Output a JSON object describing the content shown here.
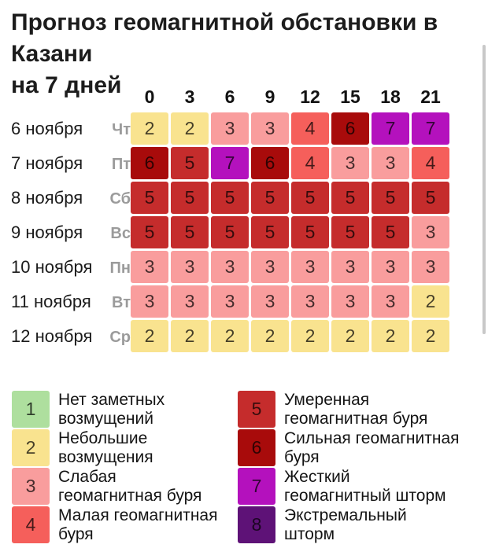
{
  "title": {
    "full": "Прогноз геомагнитной обстановки в Казани на 7 дней",
    "lines": [
      "Прогноз геомагнитной обстановки в Казани",
      "на 7 дней"
    ]
  },
  "chart_data": {
    "type": "heatmap",
    "title": "Прогноз геомагнитной обстановки в Казани на 7 дней",
    "x": [
      "0",
      "3",
      "6",
      "9",
      "12",
      "15",
      "18",
      "21"
    ],
    "rows": [
      {
        "date": "6 ноября",
        "weekday": "Чт",
        "values": [
          2,
          2,
          3,
          3,
          4,
          6,
          7,
          7
        ]
      },
      {
        "date": "7 ноября",
        "weekday": "Пт",
        "values": [
          6,
          5,
          7,
          6,
          4,
          3,
          3,
          4
        ]
      },
      {
        "date": "8 ноября",
        "weekday": "Сб",
        "values": [
          5,
          5,
          5,
          5,
          5,
          5,
          5,
          5
        ]
      },
      {
        "date": "9 ноября",
        "weekday": "Вс",
        "values": [
          5,
          5,
          5,
          5,
          5,
          5,
          5,
          3
        ]
      },
      {
        "date": "10 ноября",
        "weekday": "Пн",
        "values": [
          3,
          3,
          3,
          3,
          3,
          3,
          3,
          3
        ]
      },
      {
        "date": "11 ноября",
        "weekday": "Вт",
        "values": [
          3,
          3,
          3,
          3,
          3,
          3,
          3,
          2
        ]
      },
      {
        "date": "12 ноября",
        "weekday": "Ср",
        "values": [
          2,
          2,
          2,
          2,
          2,
          2,
          2,
          2
        ]
      }
    ],
    "levels": [
      {
        "level": 1,
        "color": "#AEDF9E",
        "label": "Нет заметных возмущений",
        "label_lines": [
          "Нет заметных",
          "возмущений"
        ]
      },
      {
        "level": 2,
        "color": "#F9E38F",
        "label": "Небольшие возмущения",
        "label_lines": [
          "Небольшие",
          "возмущения"
        ]
      },
      {
        "level": 3,
        "color": "#F99D9D",
        "label": "Слабая геомагнитная буря",
        "label_lines": [
          "Слабая",
          "геомагнитная буря"
        ]
      },
      {
        "level": 4,
        "color": "#F55F5B",
        "label": "Малая геомагнитная буря",
        "label_lines": [
          "Малая геомагнитная",
          "буря"
        ]
      },
      {
        "level": 5,
        "color": "#C52C2C",
        "label": "Умеренная геомагнитная буря",
        "label_lines": [
          "Умеренная",
          "геомагнитная буря"
        ]
      },
      {
        "level": 6,
        "color": "#A80B0B",
        "label": "Сильная геомагнитная буря",
        "label_lines": [
          "Сильная геомагнитная",
          "буря"
        ]
      },
      {
        "level": 7,
        "color": "#B411BD",
        "label": "Жесткий геомагнитный шторм",
        "label_lines": [
          "Жесткий",
          "геомагнитный шторм"
        ]
      },
      {
        "level": 8,
        "color": "#5E1277",
        "label": "Экстремальный шторм",
        "label_lines": [
          "Экстремальный",
          "шторм"
        ]
      }
    ],
    "legend_columns": {
      "left": [
        1,
        2,
        3,
        4
      ],
      "right": [
        5,
        6,
        7,
        8
      ]
    }
  }
}
